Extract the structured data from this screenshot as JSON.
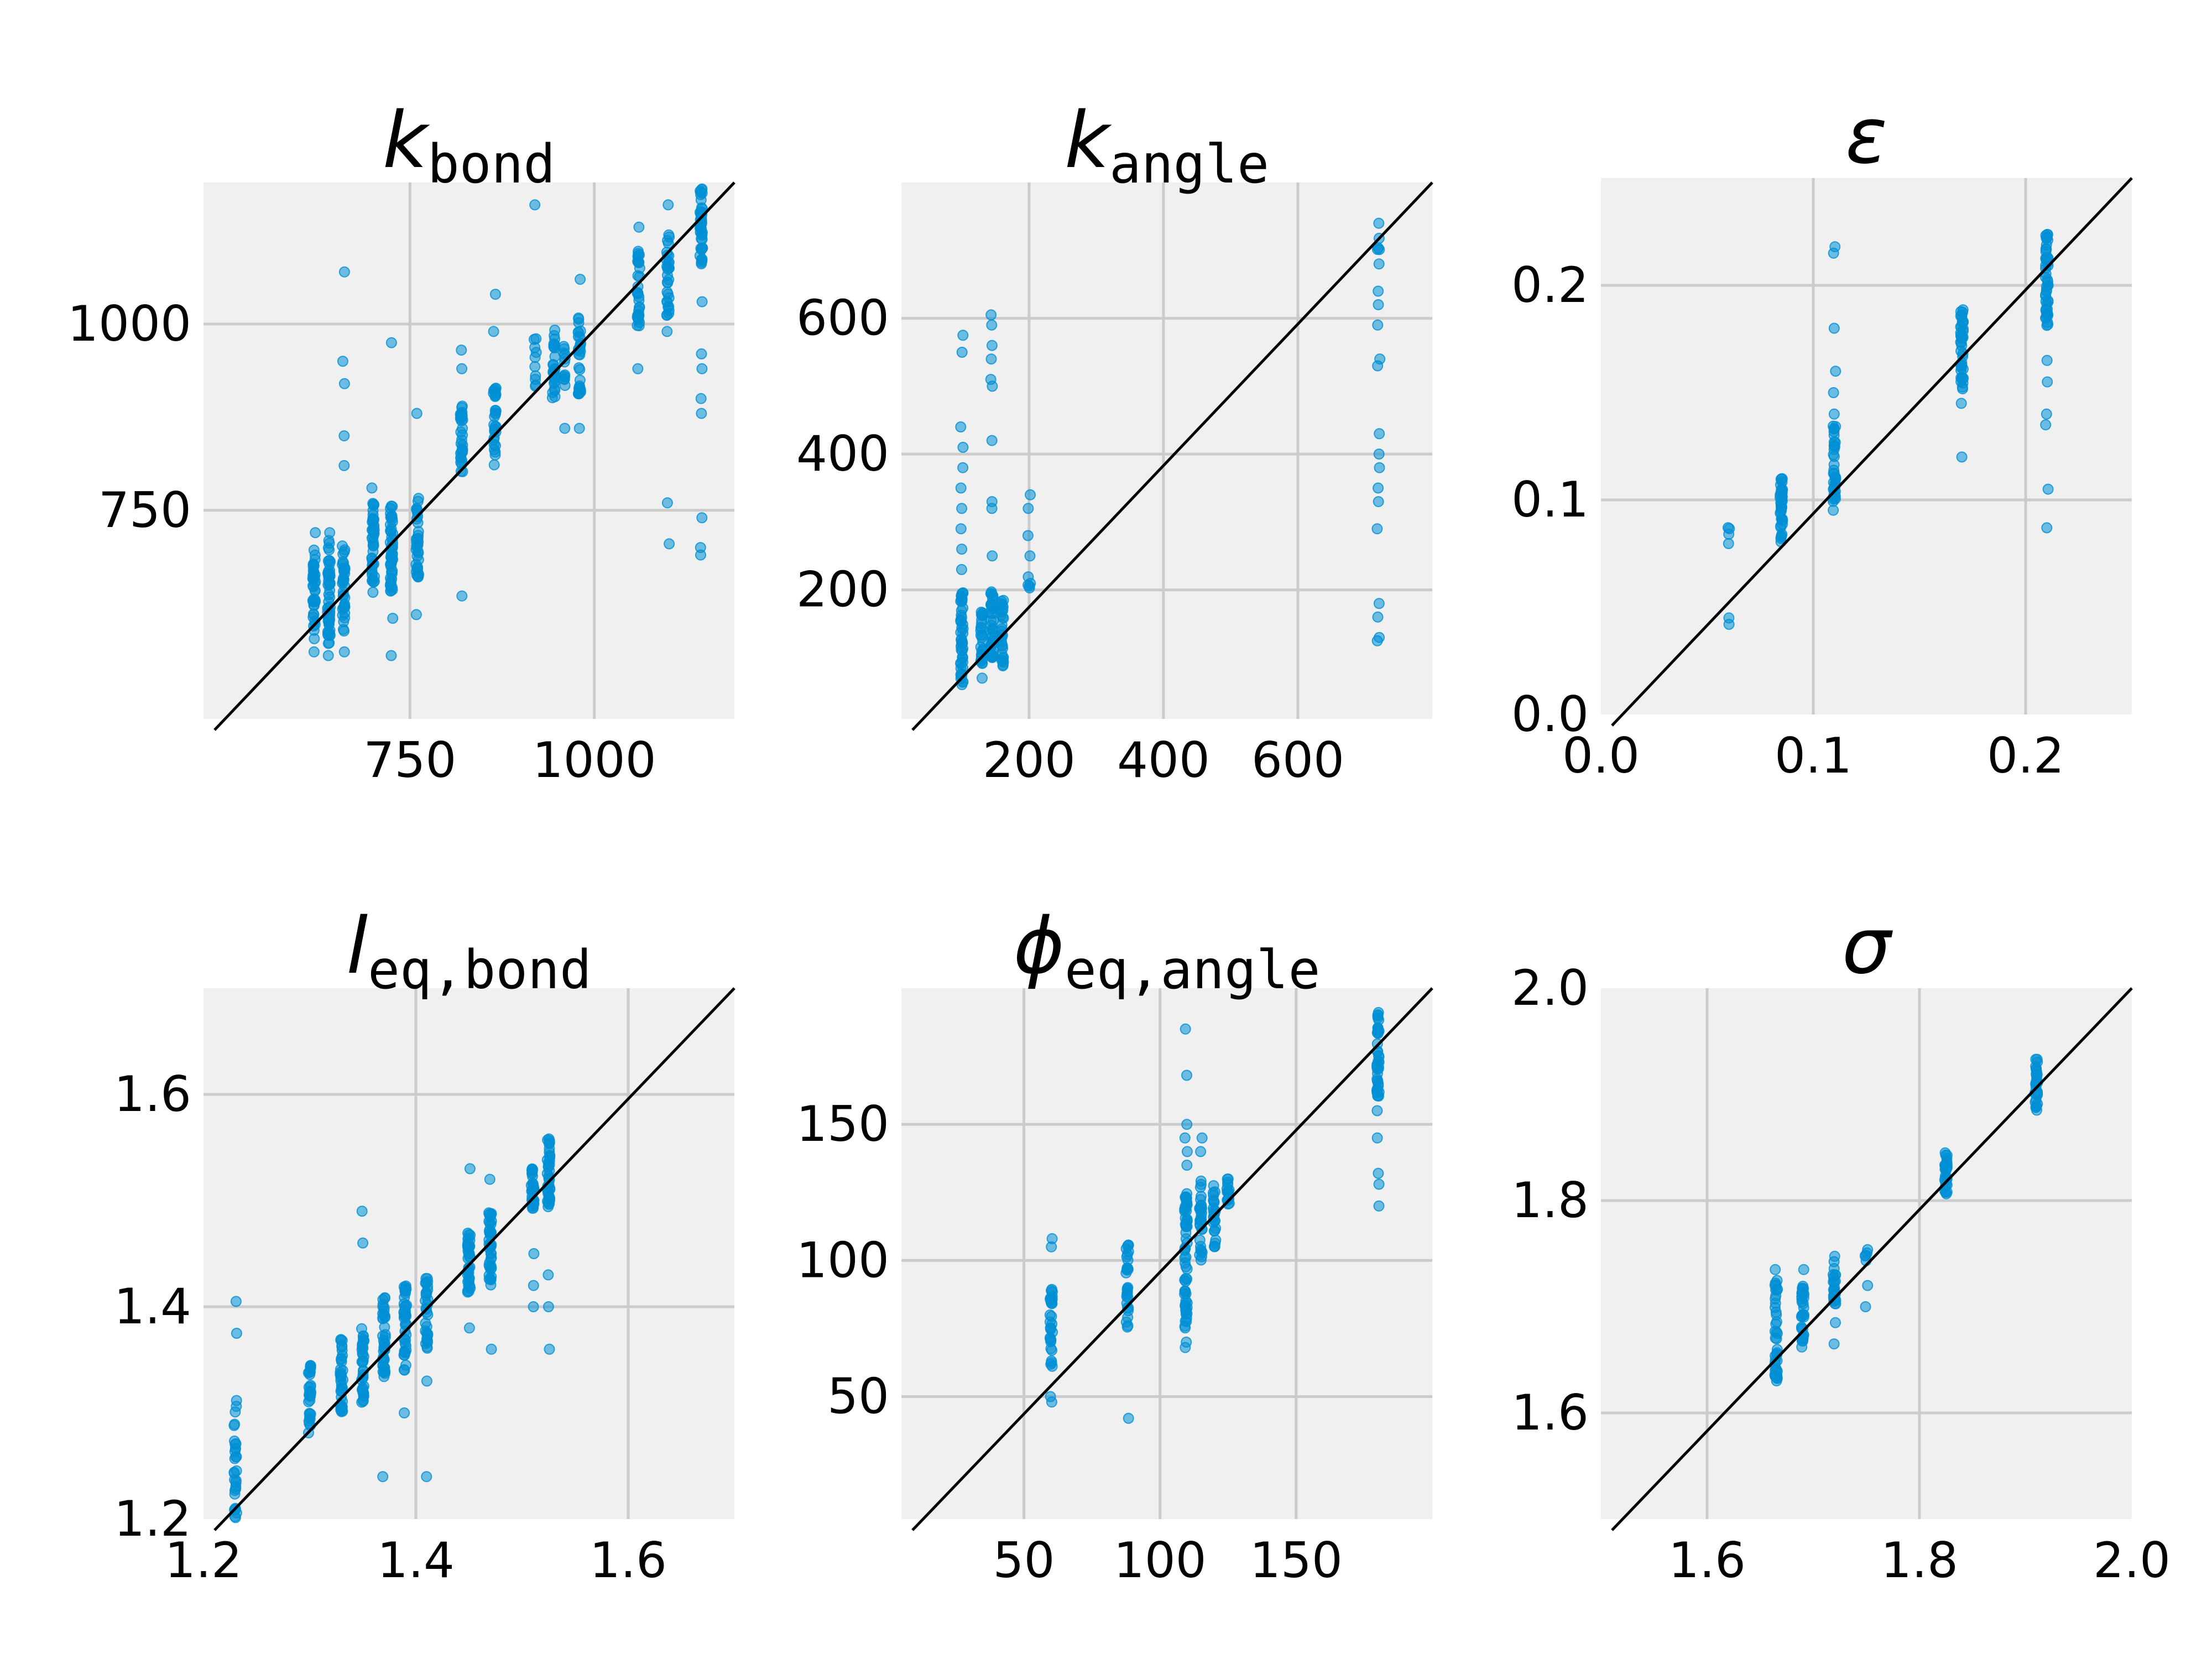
{
  "colors": {
    "panel_bg": "#f0f0f0",
    "grid": "#cbcbcb",
    "marker": "#008fd5",
    "identity_line": "#000000"
  },
  "chart_data": [
    {
      "type": "scatter",
      "title": {
        "symbol": "k",
        "subscript": "bond"
      },
      "xlim": [
        470,
        1190
      ],
      "ylim": [
        470,
        1190
      ],
      "xticks": [
        750,
        1000
      ],
      "yticks": [
        750,
        1000
      ],
      "xtick_labels": [
        "750",
        "1000"
      ],
      "ytick_labels": [
        "750",
        "1000"
      ],
      "identity_line": true,
      "grid": true,
      "clusters": [
        {
          "x": 620,
          "ylo": 575,
          "yhi": 700,
          "n": 40,
          "out": [
            560,
            720
          ]
        },
        {
          "x": 640,
          "ylo": 570,
          "yhi": 710,
          "n": 50,
          "out": [
            555,
            720
          ]
        },
        {
          "x": 660,
          "ylo": 585,
          "yhi": 705,
          "n": 35,
          "out": [
            560,
            810,
            850,
            950,
            920,
            1070
          ]
        },
        {
          "x": 700,
          "ylo": 650,
          "yhi": 760,
          "n": 40,
          "out": [
            640,
            780
          ]
        },
        {
          "x": 725,
          "ylo": 640,
          "yhi": 765,
          "n": 45,
          "out": [
            605,
            975,
            555
          ]
        },
        {
          "x": 760,
          "ylo": 660,
          "yhi": 770,
          "n": 35,
          "out": [
            610,
            880
          ]
        },
        {
          "x": 820,
          "ylo": 800,
          "yhi": 890,
          "n": 30,
          "out": [
            635,
            940,
            965
          ]
        },
        {
          "x": 865,
          "ylo": 810,
          "yhi": 915,
          "n": 30,
          "out": [
            1040,
            990
          ]
        },
        {
          "x": 920,
          "ylo": 910,
          "yhi": 985,
          "n": 10,
          "out": [
            1160
          ]
        },
        {
          "x": 945,
          "ylo": 900,
          "yhi": 995,
          "n": 25,
          "out": []
        },
        {
          "x": 960,
          "ylo": 915,
          "yhi": 980,
          "n": 12,
          "out": [
            860
          ]
        },
        {
          "x": 980,
          "ylo": 905,
          "yhi": 1020,
          "n": 30,
          "out": [
            860,
            1060
          ]
        },
        {
          "x": 1060,
          "ylo": 990,
          "yhi": 1100,
          "n": 30,
          "out": [
            940,
            1130
          ]
        },
        {
          "x": 1100,
          "ylo": 1010,
          "yhi": 1120,
          "n": 30,
          "out": [
            1160,
            760,
            705,
            990
          ]
        },
        {
          "x": 1145,
          "ylo": 1080,
          "yhi": 1185,
          "n": 45,
          "out": [
            1030,
            960,
            940,
            900,
            880,
            740,
            700,
            690
          ]
        }
      ]
    },
    {
      "type": "scatter",
      "title": {
        "symbol": "k",
        "subscript": "angle"
      },
      "xlim": [
        10,
        800
      ],
      "ylim": [
        10,
        800
      ],
      "xticks": [
        200,
        400,
        600
      ],
      "yticks": [
        200,
        400,
        600
      ],
      "xtick_labels": [
        "200",
        "400",
        "600"
      ],
      "ytick_labels": [
        "200",
        "400",
        "600"
      ],
      "identity_line": true,
      "grid": true,
      "clusters": [
        {
          "x": 100,
          "ylo": 60,
          "yhi": 200,
          "n": 50,
          "out": [
            230,
            260,
            290,
            320,
            350,
            380,
            410,
            440,
            550,
            575
          ]
        },
        {
          "x": 130,
          "ylo": 90,
          "yhi": 170,
          "n": 30,
          "out": [
            70
          ]
        },
        {
          "x": 145,
          "ylo": 100,
          "yhi": 200,
          "n": 40,
          "out": [
            250,
            320,
            330,
            420,
            500,
            510,
            540,
            560,
            590,
            605
          ]
        },
        {
          "x": 160,
          "ylo": 85,
          "yhi": 185,
          "n": 30,
          "out": []
        },
        {
          "x": 200,
          "ylo": 200,
          "yhi": 220,
          "n": 5,
          "out": [
            250,
            280,
            320,
            340
          ]
        },
        {
          "x": 720,
          "ylo": 700,
          "yhi": 720,
          "n": 4,
          "out": [
            740,
            680,
            640,
            620,
            590,
            540,
            530,
            430,
            400,
            380,
            350,
            330,
            290,
            180,
            160,
            130,
            125
          ]
        }
      ]
    },
    {
      "type": "scatter",
      "title": {
        "symbol": "ε",
        "subscript": ""
      },
      "xlim": [
        0.0,
        0.25
      ],
      "ylim": [
        0.0,
        0.25
      ],
      "xticks": [
        0.0,
        0.1,
        0.2
      ],
      "yticks": [
        0.0,
        0.1,
        0.2
      ],
      "xtick_labels": [
        "0.0",
        "0.1",
        "0.2"
      ],
      "ytick_labels": [
        "0.0",
        "0.1",
        "0.2"
      ],
      "identity_line": true,
      "grid": true,
      "clusters": [
        {
          "x": 0.06,
          "ylo": 0.07,
          "yhi": 0.09,
          "n": 4,
          "out": [
            0.045,
            0.042
          ]
        },
        {
          "x": 0.085,
          "ylo": 0.08,
          "yhi": 0.11,
          "n": 40,
          "out": []
        },
        {
          "x": 0.11,
          "ylo": 0.095,
          "yhi": 0.135,
          "n": 40,
          "out": [
            0.14,
            0.15,
            0.16,
            0.18,
            0.215,
            0.218
          ]
        },
        {
          "x": 0.17,
          "ylo": 0.15,
          "yhi": 0.19,
          "n": 40,
          "out": [
            0.12,
            0.145
          ]
        },
        {
          "x": 0.21,
          "ylo": 0.18,
          "yhi": 0.225,
          "n": 50,
          "out": [
            0.165,
            0.155,
            0.14,
            0.135,
            0.105,
            0.087
          ]
        }
      ]
    },
    {
      "type": "scatter",
      "title": {
        "symbol": "l",
        "subscript": "eq,bond"
      },
      "xlim": [
        1.2,
        1.7
      ],
      "ylim": [
        1.2,
        1.7
      ],
      "xticks": [
        1.2,
        1.4,
        1.6
      ],
      "yticks": [
        1.2,
        1.4,
        1.6
      ],
      "xtick_labels": [
        "1.2",
        "1.4",
        "1.6"
      ],
      "ytick_labels": [
        "1.2",
        "1.4",
        "1.6"
      ],
      "identity_line": true,
      "grid": true,
      "clusters": [
        {
          "x": 1.23,
          "ylo": 1.2,
          "yhi": 1.32,
          "n": 30,
          "out": [
            1.375,
            1.405
          ]
        },
        {
          "x": 1.3,
          "ylo": 1.28,
          "yhi": 1.35,
          "n": 30,
          "out": []
        },
        {
          "x": 1.33,
          "ylo": 1.3,
          "yhi": 1.37,
          "n": 35,
          "out": []
        },
        {
          "x": 1.35,
          "ylo": 1.31,
          "yhi": 1.38,
          "n": 35,
          "out": [
            1.46,
            1.49
          ]
        },
        {
          "x": 1.37,
          "ylo": 1.33,
          "yhi": 1.41,
          "n": 40,
          "out": [
            1.24
          ]
        },
        {
          "x": 1.39,
          "ylo": 1.34,
          "yhi": 1.42,
          "n": 40,
          "out": [
            1.3
          ]
        },
        {
          "x": 1.41,
          "ylo": 1.36,
          "yhi": 1.43,
          "n": 30,
          "out": [
            1.24,
            1.33
          ]
        },
        {
          "x": 1.45,
          "ylo": 1.41,
          "yhi": 1.47,
          "n": 35,
          "out": [
            1.53,
            1.38
          ]
        },
        {
          "x": 1.47,
          "ylo": 1.42,
          "yhi": 1.49,
          "n": 40,
          "out": [
            1.52,
            1.36
          ]
        },
        {
          "x": 1.51,
          "ylo": 1.49,
          "yhi": 1.53,
          "n": 30,
          "out": [
            1.4,
            1.42,
            1.45
          ]
        },
        {
          "x": 1.525,
          "ylo": 1.49,
          "yhi": 1.565,
          "n": 40,
          "out": [
            1.36,
            1.4,
            1.43
          ]
        }
      ]
    },
    {
      "type": "scatter",
      "title": {
        "symbol": "ϕ",
        "subscript": "eq,angle"
      },
      "xlim": [
        5,
        200
      ],
      "ylim": [
        5,
        200
      ],
      "xticks": [
        50,
        100,
        150
      ],
      "yticks": [
        50,
        100,
        150
      ],
      "xtick_labels": [
        "50",
        "100",
        "150"
      ],
      "ytick_labels": [
        "50",
        "100",
        "150"
      ],
      "identity_line": true,
      "grid": true,
      "clusters": [
        {
          "x": 60,
          "ylo": 60,
          "yhi": 90,
          "n": 30,
          "out": [
            105,
            108,
            50,
            48
          ]
        },
        {
          "x": 88,
          "ylo": 75,
          "yhi": 107,
          "n": 30,
          "out": [
            42
          ]
        },
        {
          "x": 109.5,
          "ylo": 75,
          "yhi": 125,
          "n": 60,
          "out": [
            70,
            68,
            135,
            140,
            145,
            150,
            168,
            185
          ]
        },
        {
          "x": 115,
          "ylo": 100,
          "yhi": 130,
          "n": 30,
          "out": [
            140,
            145
          ]
        },
        {
          "x": 120,
          "ylo": 105,
          "yhi": 128,
          "n": 25,
          "out": []
        },
        {
          "x": 125,
          "ylo": 115,
          "yhi": 130,
          "n": 15,
          "out": []
        },
        {
          "x": 180,
          "ylo": 160,
          "yhi": 192,
          "n": 40,
          "out": [
            155,
            145,
            132,
            128,
            120
          ]
        }
      ]
    },
    {
      "type": "scatter",
      "title": {
        "symbol": "σ",
        "subscript": ""
      },
      "xlim": [
        1.5,
        2.0
      ],
      "ylim": [
        1.5,
        2.0
      ],
      "xticks": [
        1.6,
        1.8,
        2.0
      ],
      "yticks": [
        1.6,
        1.8,
        2.0
      ],
      "xtick_labels": [
        "1.6",
        "1.8",
        "2.0"
      ],
      "ytick_labels": [
        "1.6",
        "1.8",
        "2.0"
      ],
      "identity_line": true,
      "grid": true,
      "clusters": [
        {
          "x": 1.665,
          "ylo": 1.63,
          "yhi": 1.73,
          "n": 40,
          "out": [
            1.735
          ]
        },
        {
          "x": 1.69,
          "ylo": 1.66,
          "yhi": 1.72,
          "n": 30,
          "out": [
            1.735
          ]
        },
        {
          "x": 1.72,
          "ylo": 1.7,
          "yhi": 1.75,
          "n": 25,
          "out": [
            1.665,
            1.685
          ]
        },
        {
          "x": 1.75,
          "ylo": 1.74,
          "yhi": 1.76,
          "n": 5,
          "out": [
            1.7,
            1.72
          ]
        },
        {
          "x": 1.825,
          "ylo": 1.805,
          "yhi": 1.845,
          "n": 30,
          "out": []
        },
        {
          "x": 1.91,
          "ylo": 1.885,
          "yhi": 1.935,
          "n": 30,
          "out": []
        }
      ]
    }
  ]
}
